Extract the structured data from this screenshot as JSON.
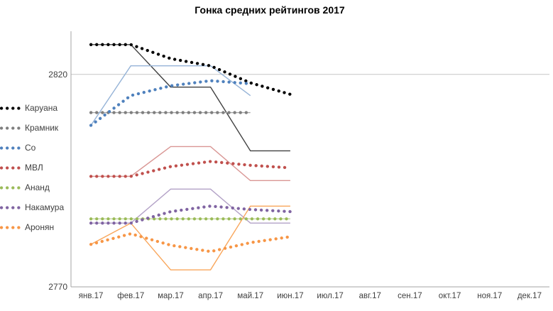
{
  "title": "Гонка средних рейтингов 2017",
  "y_axis_tick_labels": [
    "2820",
    "2770"
  ],
  "chart_data": {
    "type": "line",
    "title": "Гонка средних рейтингов 2017",
    "categories": [
      "янв.17",
      "фев.17",
      "мар.17",
      "апр.17",
      "май.17",
      "июн.17",
      "июл.17",
      "авг.17",
      "сен.17",
      "окт.17",
      "ноя.17",
      "дек.17"
    ],
    "y_axis": {
      "min": 2770,
      "max": 2830,
      "labeled_ticks": [
        2820,
        2770
      ],
      "gridline_at": 2820
    },
    "legend_position": "left",
    "grid": "horizontal-only",
    "series": [
      {
        "name": "Каруана",
        "color": "#000000",
        "light_color": "#404040",
        "monthly_rating": [
          2827,
          2827,
          2817,
          2817,
          2802,
          2802
        ],
        "running_average": [
          2827,
          2827,
          2823.7,
          2822,
          2818,
          2815.3
        ]
      },
      {
        "name": "Крамник",
        "color": "#7F7F7F",
        "light_color": "#A6A6A6",
        "monthly_rating": [
          2811,
          2811,
          2811,
          2811,
          2811
        ],
        "running_average": [
          2811,
          2811,
          2811,
          2811,
          2811
        ]
      },
      {
        "name": "Со",
        "color": "#4F81BD",
        "light_color": "#95B3D7",
        "monthly_rating": [
          2808,
          2822,
          2822,
          2822,
          2815
        ],
        "running_average": [
          2808,
          2815,
          2817.3,
          2818.5,
          2817.8
        ]
      },
      {
        "name": "МВЛ",
        "color": "#C0504D",
        "light_color": "#D99694",
        "monthly_rating": [
          2796,
          2796,
          2803,
          2803,
          2795,
          2795
        ],
        "running_average": [
          2796,
          2796,
          2798.3,
          2799.5,
          2798.6,
          2798
        ]
      },
      {
        "name": "Ананд",
        "color": "#9BBB59",
        "light_color": "#C3D69B",
        "monthly_rating": [
          2786,
          2786,
          2786,
          2786,
          2786,
          2786
        ],
        "running_average": [
          2786,
          2786,
          2786,
          2786,
          2786,
          2786
        ]
      },
      {
        "name": "Накамура",
        "color": "#8064A2",
        "light_color": "#B3A2C7",
        "monthly_rating": [
          2785,
          2785,
          2793,
          2793,
          2785,
          2785
        ],
        "running_average": [
          2785,
          2785,
          2787.7,
          2789,
          2788.2,
          2787.7
        ]
      },
      {
        "name": "Аронян",
        "color": "#F79646",
        "light_color": "#F9A65B",
        "monthly_rating": [
          2780,
          2785,
          2774,
          2774,
          2789,
          2789
        ],
        "running_average": [
          2780,
          2782.5,
          2779.8,
          2778.3,
          2780.4,
          2781.8
        ]
      }
    ],
    "line_styles": {
      "running_average": "thick dotted",
      "monthly_rating": "thin solid"
    }
  },
  "colors": {
    "gridline": "#C6C6C6",
    "axis": "#A6A6A6",
    "background": "#FFFFFF"
  }
}
